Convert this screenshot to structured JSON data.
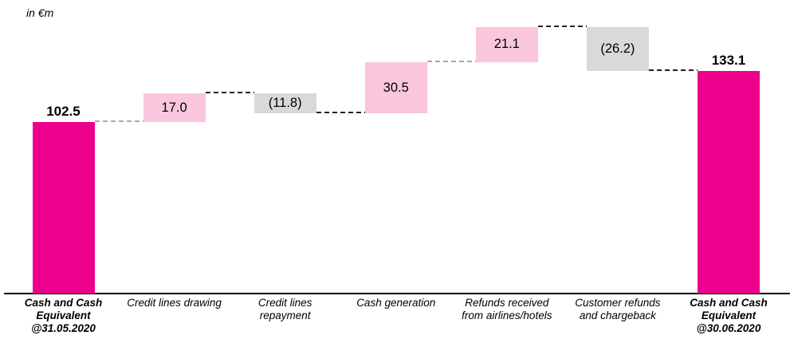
{
  "chart_data": {
    "type": "bar",
    "subtype": "waterfall",
    "unit_label": "in €m",
    "title": "",
    "xlabel": "",
    "ylabel": "in €m",
    "ylim": [
      0,
      175
    ],
    "grid": false,
    "legend": false,
    "categories": [
      "Cash and Cash Equivalent @31.05.2020",
      "Credit lines drawing",
      "Credit lines repayment",
      "Cash generation",
      "Refunds received from airlines/hotels",
      "Customer refunds and chargeback",
      "Cash and Cash Equivalent @30.06.2020"
    ],
    "bars": [
      {
        "category": "Cash and Cash Equivalent @31.05.2020",
        "category_lines": [
          "Cash and Cash",
          "Equivalent",
          "@31.05.2020"
        ],
        "category_bold": true,
        "value": 102.5,
        "display": "102.5",
        "kind": "total",
        "label_position": "above"
      },
      {
        "category": "Credit lines drawing",
        "category_lines": [
          "Credit lines drawing"
        ],
        "category_bold": false,
        "value": 17.0,
        "display": "17.0",
        "kind": "increase",
        "label_position": "inside"
      },
      {
        "category": "Credit lines repayment",
        "category_lines": [
          "Credit lines",
          "repayment"
        ],
        "category_bold": false,
        "value": -11.8,
        "display": "(11.8)",
        "kind": "decrease",
        "label_position": "inside"
      },
      {
        "category": "Cash generation",
        "category_lines": [
          "Cash generation"
        ],
        "category_bold": false,
        "value": 30.5,
        "display": "30.5",
        "kind": "increase",
        "label_position": "inside"
      },
      {
        "category": "Refunds received from airlines/hotels",
        "category_lines": [
          "Refunds received",
          "from airlines/hotels"
        ],
        "category_bold": false,
        "value": 21.1,
        "display": "21.1",
        "kind": "increase",
        "label_position": "inside"
      },
      {
        "category": "Customer refunds and chargeback",
        "category_lines": [
          "Customer refunds",
          "and chargeback"
        ],
        "category_bold": false,
        "value": -26.2,
        "display": "(26.2)",
        "kind": "decrease",
        "label_position": "inside"
      },
      {
        "category": "Cash and Cash Equivalent @30.06.2020",
        "category_lines": [
          "Cash and Cash",
          "Equivalent",
          "@30.06.2020"
        ],
        "category_bold": true,
        "value": 133.1,
        "display": "133.1",
        "kind": "total",
        "label_position": "above"
      }
    ],
    "running_totals": [
      102.5,
      119.5,
      107.7,
      138.2,
      159.3,
      133.1,
      133.1
    ],
    "colors": {
      "total": "#ec008c",
      "increase": "#f9c6de",
      "decrease": "#d9d9d9",
      "axis": "#000000",
      "text": "#000000"
    },
    "connector_colors": [
      "#a6a6a6",
      "#1f1f1f",
      "#1f1f1f",
      "#a6a6a6",
      "#1f1f1f",
      "#1f1f1f"
    ]
  }
}
